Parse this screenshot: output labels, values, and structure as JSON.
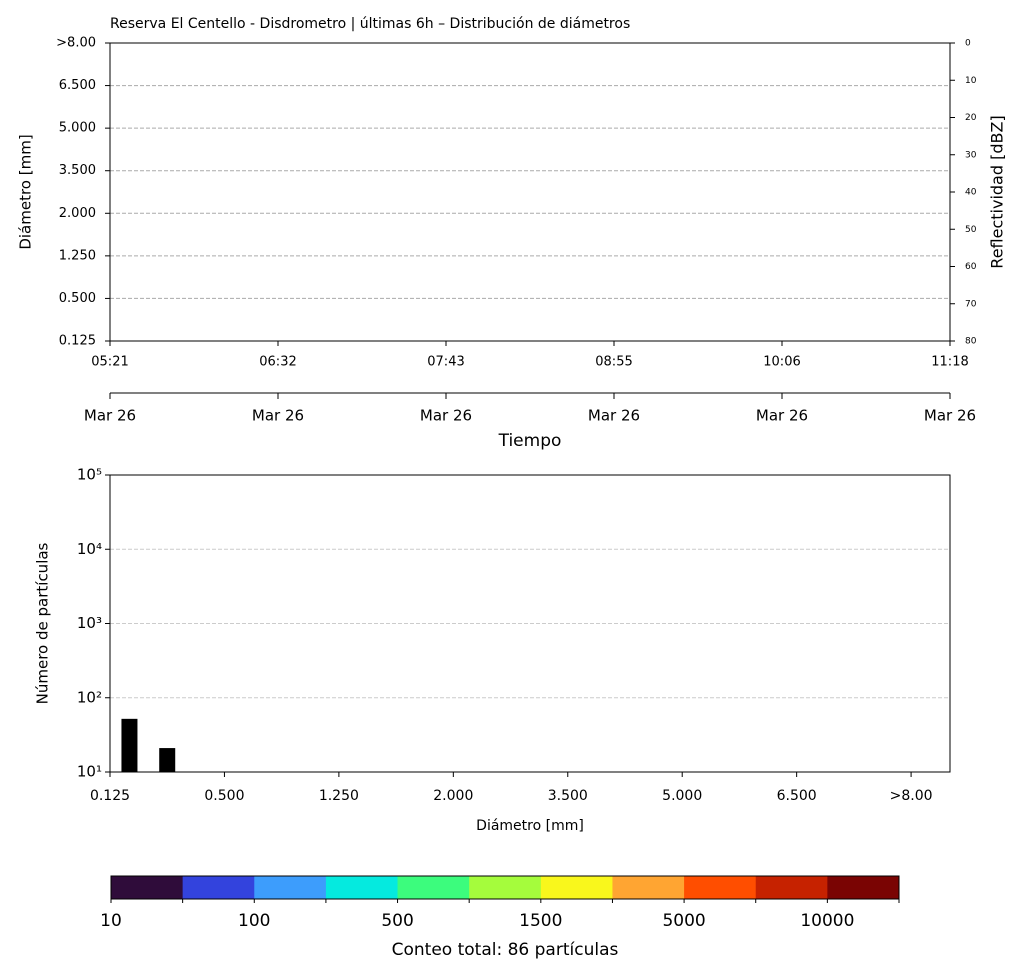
{
  "chart_data": [
    {
      "type": "heatmap",
      "title": "Reserva El Centello - Disdrometro | últimas 6h – Distribución de diámetros",
      "ylabel": "Diámetro [mm]",
      "y_categories": [
        "0.125",
        "0.500",
        "1.250",
        "2.000",
        "3.500",
        "5.000",
        "6.500",
        ">8.00"
      ],
      "grid": true,
      "y2label": "Reflectividad [dBZ]",
      "y2lim": [
        80,
        0
      ],
      "y2ticks": [
        0,
        10,
        20,
        30,
        40,
        50,
        60,
        70,
        80
      ],
      "x_categories": [
        "05:21",
        "06:32",
        "07:43",
        "08:55",
        "10:06",
        "11:18"
      ],
      "x2_categories": [
        "Mar 26",
        "Mar 26",
        "Mar 26",
        "Mar 26",
        "Mar 26",
        "Mar 26"
      ],
      "xlabel": "Tiempo"
    },
    {
      "type": "bar",
      "xlabel": "Diámetro [mm]",
      "ylabel": "Número de partículas",
      "log_y": true,
      "ylim": [
        10,
        100000
      ],
      "yticks": [
        {
          "value": 10,
          "label": "10¹"
        },
        {
          "value": 100,
          "label": "10²"
        },
        {
          "value": 1000,
          "label": "10³"
        },
        {
          "value": 10000,
          "label": "10⁴"
        },
        {
          "value": 100000,
          "label": "10⁵"
        }
      ],
      "grid": true,
      "xlim": [
        0,
        7.34
      ],
      "xticks": [
        {
          "value": 0,
          "label": "0.125"
        },
        {
          "value": 1,
          "label": "0.500"
        },
        {
          "value": 2,
          "label": "1.250"
        },
        {
          "value": 3,
          "label": "2.000"
        },
        {
          "value": 4,
          "label": "3.500"
        },
        {
          "value": 5,
          "label": "5.000"
        },
        {
          "value": 6,
          "label": "6.500"
        },
        {
          "value": 7,
          "label": ">8.00"
        }
      ],
      "x": [
        0.17,
        0.5
      ],
      "values": [
        52,
        21
      ],
      "color": "#000000"
    },
    {
      "type": "colorbar",
      "colors": [
        "#2f0c3a",
        "#3343dd",
        "#3d9dfc",
        "#05eadf",
        "#3cfc7d",
        "#a5fc3c",
        "#f9f71c",
        "#ffa532",
        "#ff4e00",
        "#c62200",
        "#7a0403"
      ],
      "tick_labels": [
        10,
        100,
        500,
        1500,
        5000,
        10000
      ],
      "label": "Conteo total: 86 partículas"
    }
  ]
}
